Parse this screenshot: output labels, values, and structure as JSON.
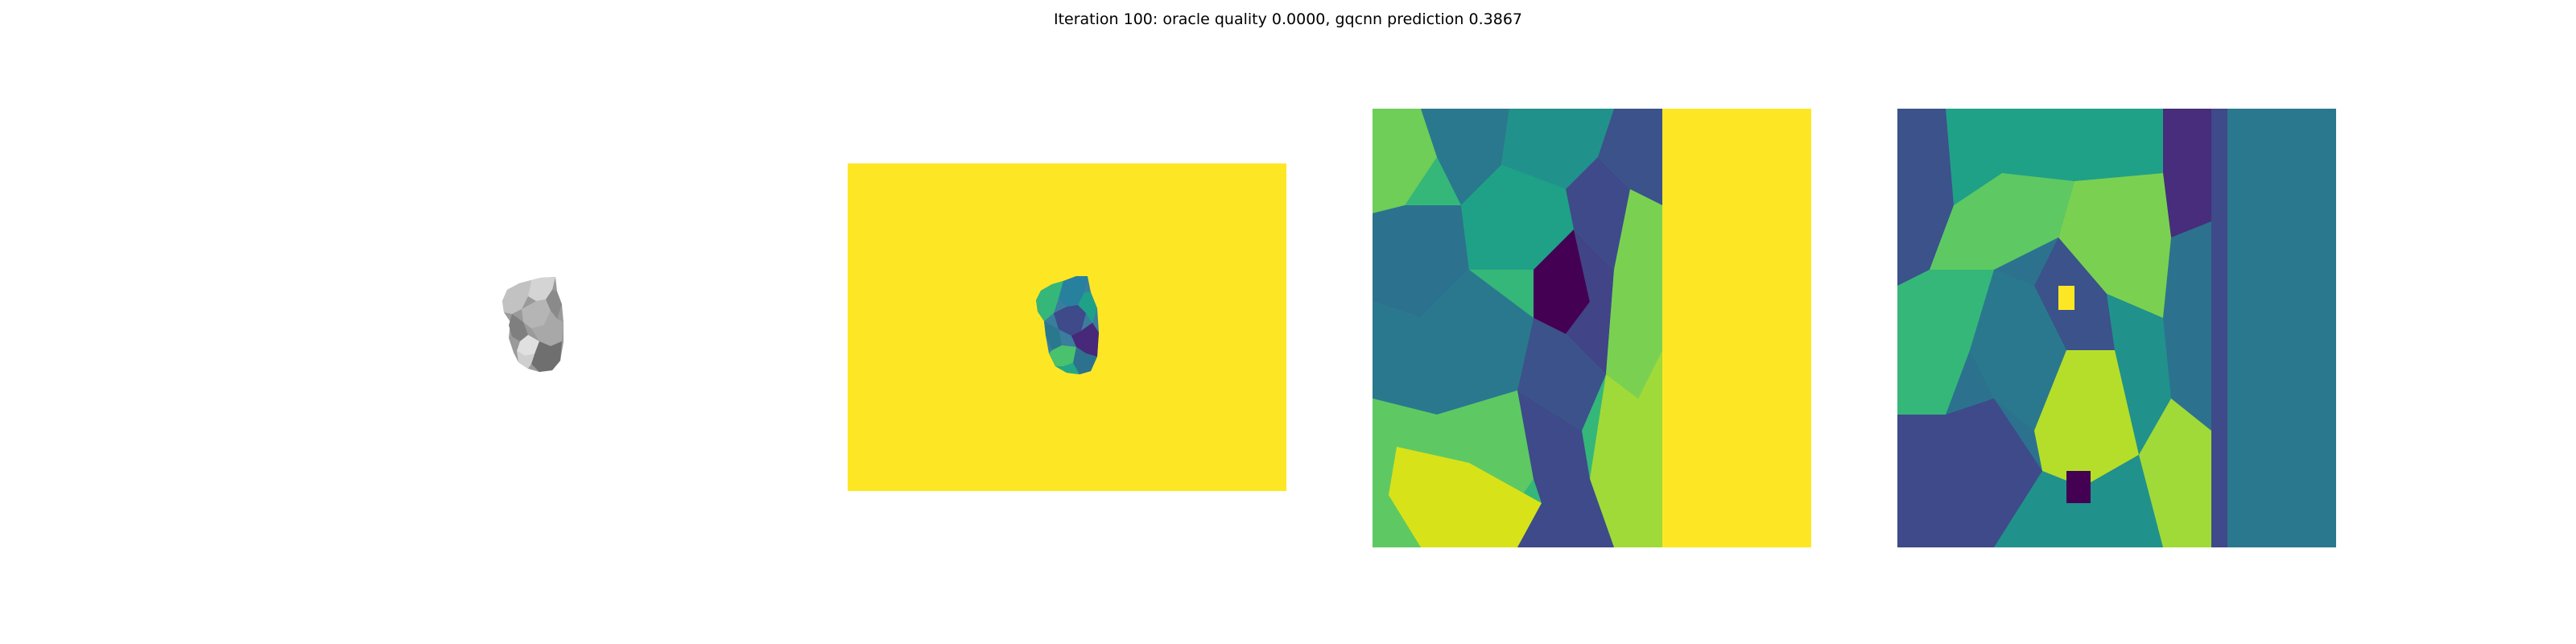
{
  "figure": {
    "title": "Iteration 100: oracle quality 0.0000, gqcnn prediction 0.3867"
  },
  "panels": [
    {
      "name": "rendered-object",
      "colormap": "gray"
    },
    {
      "name": "depth-image",
      "colormap": "viridis"
    },
    {
      "name": "depth-crop",
      "colormap": "viridis"
    },
    {
      "name": "depth-crop-2",
      "colormap": "viridis"
    }
  ],
  "colors": {
    "background": "#ffffff",
    "viridis_low": "#440154",
    "viridis_mid": "#21918c",
    "viridis_high": "#fde725",
    "object_gray": "#a0a0a0"
  }
}
